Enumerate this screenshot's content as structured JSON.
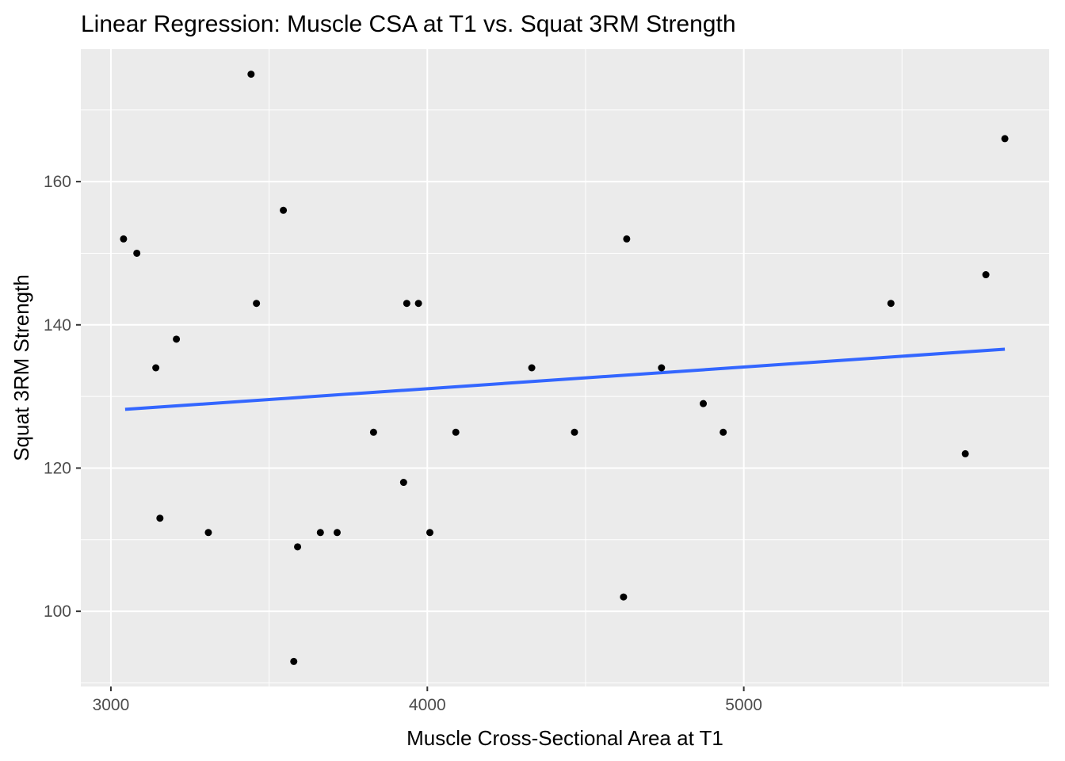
{
  "chart_data": {
    "type": "scatter",
    "title": "Linear Regression: Muscle CSA at T1 vs. Squat 3RM Strength",
    "xlabel": "Muscle Cross-Sectional Area at T1",
    "ylabel": "Squat 3RM Strength",
    "xlim": [
      2905,
      5965
    ],
    "ylim": [
      89.5,
      178.5
    ],
    "x_ticks": [
      3000,
      4000,
      5000
    ],
    "x_tick_labels": [
      "3000",
      "4000",
      "5000"
    ],
    "x_minor_ticks": [
      3500,
      4500,
      5500
    ],
    "y_ticks": [
      100,
      120,
      140,
      160
    ],
    "y_tick_labels": [
      "100",
      "120",
      "140",
      "160"
    ],
    "y_minor_ticks": [
      90,
      110,
      130,
      150,
      170
    ],
    "grid": true,
    "panel_background": "#ebebeb",
    "grid_color": "#ffffff",
    "point_color": "#000000",
    "fit_line_color": "#3366ff",
    "points": [
      {
        "x": 3040,
        "y": 152
      },
      {
        "x": 3082,
        "y": 150
      },
      {
        "x": 3142,
        "y": 134
      },
      {
        "x": 3155,
        "y": 113
      },
      {
        "x": 3207,
        "y": 138
      },
      {
        "x": 3308,
        "y": 111
      },
      {
        "x": 3443,
        "y": 175
      },
      {
        "x": 3460,
        "y": 143
      },
      {
        "x": 3545,
        "y": 156
      },
      {
        "x": 3578,
        "y": 93
      },
      {
        "x": 3590,
        "y": 109
      },
      {
        "x": 3662,
        "y": 111
      },
      {
        "x": 3715,
        "y": 111
      },
      {
        "x": 3830,
        "y": 125
      },
      {
        "x": 3925,
        "y": 118
      },
      {
        "x": 3935,
        "y": 143
      },
      {
        "x": 3972,
        "y": 143
      },
      {
        "x": 4008,
        "y": 111
      },
      {
        "x": 4090,
        "y": 125
      },
      {
        "x": 4330,
        "y": 134
      },
      {
        "x": 4465,
        "y": 125
      },
      {
        "x": 4620,
        "y": 102
      },
      {
        "x": 4630,
        "y": 152
      },
      {
        "x": 4740,
        "y": 134
      },
      {
        "x": 4872,
        "y": 129
      },
      {
        "x": 4935,
        "y": 125
      },
      {
        "x": 5465,
        "y": 143
      },
      {
        "x": 5700,
        "y": 122
      },
      {
        "x": 5765,
        "y": 147
      },
      {
        "x": 5825,
        "y": 166
      }
    ],
    "fit_line": {
      "x": [
        3045,
        5825
      ],
      "y": [
        128.2,
        136.6
      ]
    }
  }
}
